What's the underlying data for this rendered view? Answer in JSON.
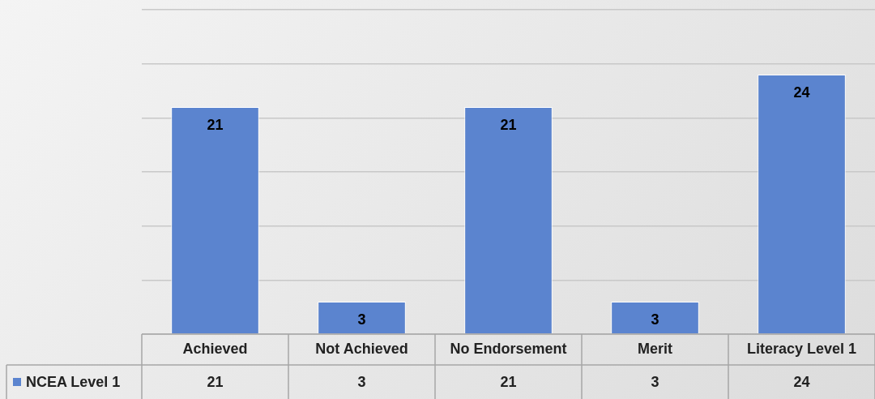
{
  "chart_data": {
    "type": "bar",
    "categories": [
      "Achieved",
      "Not Achieved",
      "No Endorsement",
      "Merit",
      "Literacy Level 1"
    ],
    "series": [
      {
        "name": "NCEA Level 1",
        "color": "#5b84cf",
        "values": [
          21,
          3,
          21,
          3,
          24
        ]
      }
    ],
    "annotations": [
      "21",
      "3",
      "21",
      "3",
      "24"
    ],
    "tick_labels": "x",
    "grid": "y",
    "data_labels": true,
    "legend": "bottom left"
  }
}
